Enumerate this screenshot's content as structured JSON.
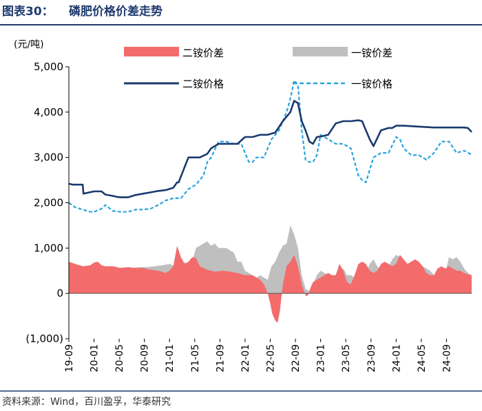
{
  "figure_label": "图表30：",
  "figure_title": "磷肥价格价差走势",
  "source_note": "资料来源：Wind，百川盈孚，华泰研究",
  "colors": {
    "dap_spread": "#f36b6b",
    "map_spread": "#bfbfbf",
    "dap_price": "#1a3a6e",
    "map_price": "#29a3dd",
    "rule": "#1f3b6e"
  },
  "chart_data": {
    "type": "line+area",
    "unit_label": "(元/吨)",
    "ylim": [
      -1000,
      5000
    ],
    "yticks": [
      5000,
      4000,
      3000,
      2000,
      1000,
      0,
      -1000
    ],
    "ytick_labels": [
      "5,000",
      "4,000",
      "3,000",
      "2,000",
      "1,000",
      "0",
      "(1,000)"
    ],
    "xlim": [
      2019.667,
      2025.0
    ],
    "xtick_positions": [
      2019.667,
      2020.0,
      2020.333,
      2020.667,
      2021.0,
      2021.333,
      2021.667,
      2022.0,
      2022.333,
      2022.667,
      2023.0,
      2023.333,
      2023.667,
      2024.0,
      2024.333,
      2024.667
    ],
    "xtick_labels": [
      "19-09",
      "20-01",
      "20-05",
      "20-09",
      "21-01",
      "21-05",
      "21-09",
      "22-01",
      "22-05",
      "22-09",
      "23-01",
      "23-05",
      "23-09",
      "24-01",
      "24-05",
      "24-09"
    ],
    "legend": [
      {
        "key": "dap_spread",
        "label": "二铵价差",
        "kind": "area"
      },
      {
        "key": "map_spread",
        "label": "一铵价差",
        "kind": "area"
      },
      {
        "key": "dap_price",
        "label": "二铵价格",
        "kind": "line"
      },
      {
        "key": "map_price",
        "label": "一铵价格",
        "kind": "line-dashed"
      }
    ],
    "series": [
      {
        "name": "二铵价格",
        "key": "dap_price",
        "x": [
          2019.667,
          2019.72,
          2019.85,
          2019.86,
          2020.0,
          2020.1,
          2020.15,
          2020.25,
          2020.3,
          2020.35,
          2020.45,
          2020.55,
          2020.65,
          2020.75,
          2020.85,
          2020.95,
          2021.05,
          2021.1,
          2021.12,
          2021.25,
          2021.4,
          2021.5,
          2021.55,
          2021.65,
          2021.8,
          2021.9,
          2022.0,
          2022.1,
          2022.2,
          2022.3,
          2022.4,
          2022.5,
          2022.55,
          2022.6,
          2022.65,
          2022.7,
          2022.75,
          2022.8,
          2022.85,
          2022.9,
          2022.95,
          2023.0,
          2023.1,
          2023.2,
          2023.3,
          2023.4,
          2023.5,
          2023.55,
          2023.6,
          2023.65,
          2023.7,
          2023.8,
          2023.9,
          2023.95,
          2024.0,
          2024.1,
          2024.3,
          2024.5,
          2024.7,
          2024.9,
          2024.95,
          2025.0
        ],
        "y": [
          2420,
          2400,
          2400,
          2200,
          2250,
          2250,
          2180,
          2150,
          2130,
          2120,
          2120,
          2170,
          2200,
          2230,
          2260,
          2280,
          2330,
          2450,
          2450,
          3000,
          3000,
          3080,
          3200,
          3300,
          3300,
          3300,
          3450,
          3450,
          3500,
          3500,
          3550,
          3800,
          3900,
          4000,
          4250,
          4200,
          3800,
          3600,
          3350,
          3300,
          3450,
          3460,
          3500,
          3750,
          3800,
          3800,
          3820,
          3800,
          3600,
          3400,
          3250,
          3600,
          3650,
          3650,
          3700,
          3700,
          3680,
          3660,
          3660,
          3660,
          3650,
          3560
        ]
      },
      {
        "name": "一铵价格",
        "key": "map_price",
        "x": [
          2019.667,
          2019.75,
          2019.85,
          2019.95,
          2020.0,
          2020.1,
          2020.15,
          2020.25,
          2020.35,
          2020.45,
          2020.55,
          2020.65,
          2020.75,
          2020.85,
          2020.95,
          2021.05,
          2021.15,
          2021.25,
          2021.35,
          2021.45,
          2021.5,
          2021.55,
          2021.65,
          2021.75,
          2021.85,
          2021.95,
          2022.0,
          2022.05,
          2022.1,
          2022.15,
          2022.25,
          2022.35,
          2022.45,
          2022.55,
          2022.6,
          2022.65,
          2022.7,
          2022.75,
          2022.8,
          2022.85,
          2022.9,
          2022.95,
          2023.0,
          2023.1,
          2023.2,
          2023.3,
          2023.4,
          2023.45,
          2023.5,
          2023.55,
          2023.6,
          2023.7,
          2023.8,
          2023.9,
          2024.0,
          2024.05,
          2024.1,
          2024.2,
          2024.3,
          2024.4,
          2024.5,
          2024.6,
          2024.7,
          2024.8,
          2024.9,
          2025.0
        ],
        "y": [
          2000,
          1900,
          1850,
          1800,
          1800,
          1870,
          1950,
          1820,
          1800,
          1800,
          1850,
          1850,
          1870,
          1950,
          2050,
          2100,
          2100,
          2300,
          2400,
          2600,
          2900,
          3000,
          3350,
          3350,
          3300,
          3300,
          3100,
          2900,
          2900,
          3000,
          3000,
          3400,
          3600,
          4000,
          4300,
          4700,
          4600,
          3600,
          2950,
          2900,
          2900,
          3050,
          3500,
          3400,
          3300,
          3300,
          3200,
          2900,
          2600,
          2500,
          2450,
          3000,
          3100,
          3100,
          3450,
          3400,
          3200,
          3050,
          3050,
          2950,
          3100,
          3350,
          3350,
          3100,
          3150,
          3060
        ]
      },
      {
        "name": "二铵价差",
        "key": "dap_spread",
        "x": [
          2019.667,
          2019.75,
          2019.85,
          2019.95,
          2020.0,
          2020.05,
          2020.1,
          2020.15,
          2020.25,
          2020.35,
          2020.45,
          2020.55,
          2020.65,
          2020.75,
          2020.85,
          2020.95,
          2021.0,
          2021.05,
          2021.1,
          2021.15,
          2021.2,
          2021.25,
          2021.3,
          2021.35,
          2021.4,
          2021.5,
          2021.6,
          2021.7,
          2021.8,
          2021.9,
          2022.0,
          2022.1,
          2022.2,
          2022.25,
          2022.3,
          2022.33,
          2022.36,
          2022.4,
          2022.43,
          2022.46,
          2022.5,
          2022.55,
          2022.6,
          2022.65,
          2022.7,
          2022.75,
          2022.8,
          2022.83,
          2022.86,
          2022.9,
          2022.95,
          2023.0,
          2023.05,
          2023.1,
          2023.15,
          2023.2,
          2023.25,
          2023.3,
          2023.35,
          2023.4,
          2023.45,
          2023.5,
          2023.55,
          2023.6,
          2023.65,
          2023.7,
          2023.75,
          2023.8,
          2023.85,
          2023.9,
          2023.95,
          2024.0,
          2024.05,
          2024.1,
          2024.15,
          2024.2,
          2024.25,
          2024.3,
          2024.35,
          2024.4,
          2024.45,
          2024.5,
          2024.55,
          2024.6,
          2024.65,
          2024.7,
          2024.75,
          2024.8,
          2024.85,
          2024.9,
          2024.95,
          2025.0
        ],
        "y": [
          700,
          650,
          600,
          620,
          680,
          700,
          620,
          600,
          600,
          560,
          580,
          560,
          560,
          520,
          500,
          450,
          500,
          600,
          1050,
          800,
          650,
          700,
          800,
          780,
          600,
          520,
          480,
          500,
          480,
          450,
          400,
          400,
          300,
          200,
          0,
          -200,
          -450,
          -600,
          -650,
          -400,
          200,
          600,
          700,
          850,
          600,
          200,
          -50,
          -50,
          100,
          250,
          300,
          350,
          400,
          450,
          400,
          400,
          650,
          500,
          250,
          200,
          400,
          650,
          700,
          650,
          500,
          450,
          500,
          650,
          700,
          650,
          600,
          650,
          850,
          750,
          650,
          700,
          750,
          700,
          600,
          450,
          400,
          400,
          550,
          600,
          550,
          600,
          550,
          500,
          500,
          450,
          420,
          400
        ]
      },
      {
        "name": "一铵价差",
        "key": "map_spread",
        "x": [
          2019.667,
          2019.75,
          2019.85,
          2019.95,
          2020.0,
          2020.1,
          2020.2,
          2020.3,
          2020.4,
          2020.5,
          2020.6,
          2020.7,
          2020.8,
          2020.9,
          2021.0,
          2021.05,
          2021.1,
          2021.15,
          2021.2,
          2021.25,
          2021.3,
          2021.35,
          2021.4,
          2021.45,
          2021.5,
          2021.55,
          2021.6,
          2021.65,
          2021.7,
          2021.75,
          2021.8,
          2021.85,
          2021.9,
          2021.95,
          2022.0,
          2022.05,
          2022.1,
          2022.15,
          2022.2,
          2022.25,
          2022.3,
          2022.35,
          2022.4,
          2022.45,
          2022.5,
          2022.55,
          2022.6,
          2022.65,
          2022.7,
          2022.75,
          2022.8,
          2022.85,
          2022.9,
          2022.95,
          2023.0,
          2023.05,
          2023.1,
          2023.15,
          2023.2,
          2023.25,
          2023.3,
          2023.35,
          2023.4,
          2023.45,
          2023.5,
          2023.55,
          2023.6,
          2023.65,
          2023.7,
          2023.75,
          2023.8,
          2023.85,
          2023.9,
          2023.95,
          2024.0,
          2024.05,
          2024.1,
          2024.15,
          2024.2,
          2024.25,
          2024.3,
          2024.35,
          2024.4,
          2024.45,
          2024.5,
          2024.55,
          2024.6,
          2024.65,
          2024.7,
          2024.75,
          2024.8,
          2024.85,
          2024.9,
          2024.95,
          2025.0
        ],
        "y": [
          600,
          580,
          550,
          560,
          600,
          580,
          560,
          560,
          570,
          560,
          580,
          580,
          600,
          620,
          650,
          620,
          600,
          500,
          700,
          600,
          700,
          1000,
          1050,
          1100,
          1150,
          1050,
          1100,
          1000,
          1000,
          1000,
          950,
          900,
          700,
          700,
          500,
          450,
          400,
          350,
          400,
          350,
          300,
          600,
          700,
          900,
          1050,
          1100,
          1500,
          1300,
          1000,
          400,
          100,
          50,
          200,
          400,
          500,
          450,
          400,
          350,
          400,
          450,
          550,
          400,
          400,
          350,
          200,
          400,
          450,
          650,
          750,
          600,
          500,
          550,
          600,
          750,
          850,
          800,
          700,
          650,
          550,
          400,
          500,
          600,
          550,
          500,
          400,
          300,
          350,
          450,
          800,
          750,
          800,
          700,
          550,
          450,
          400
        ]
      }
    ]
  }
}
